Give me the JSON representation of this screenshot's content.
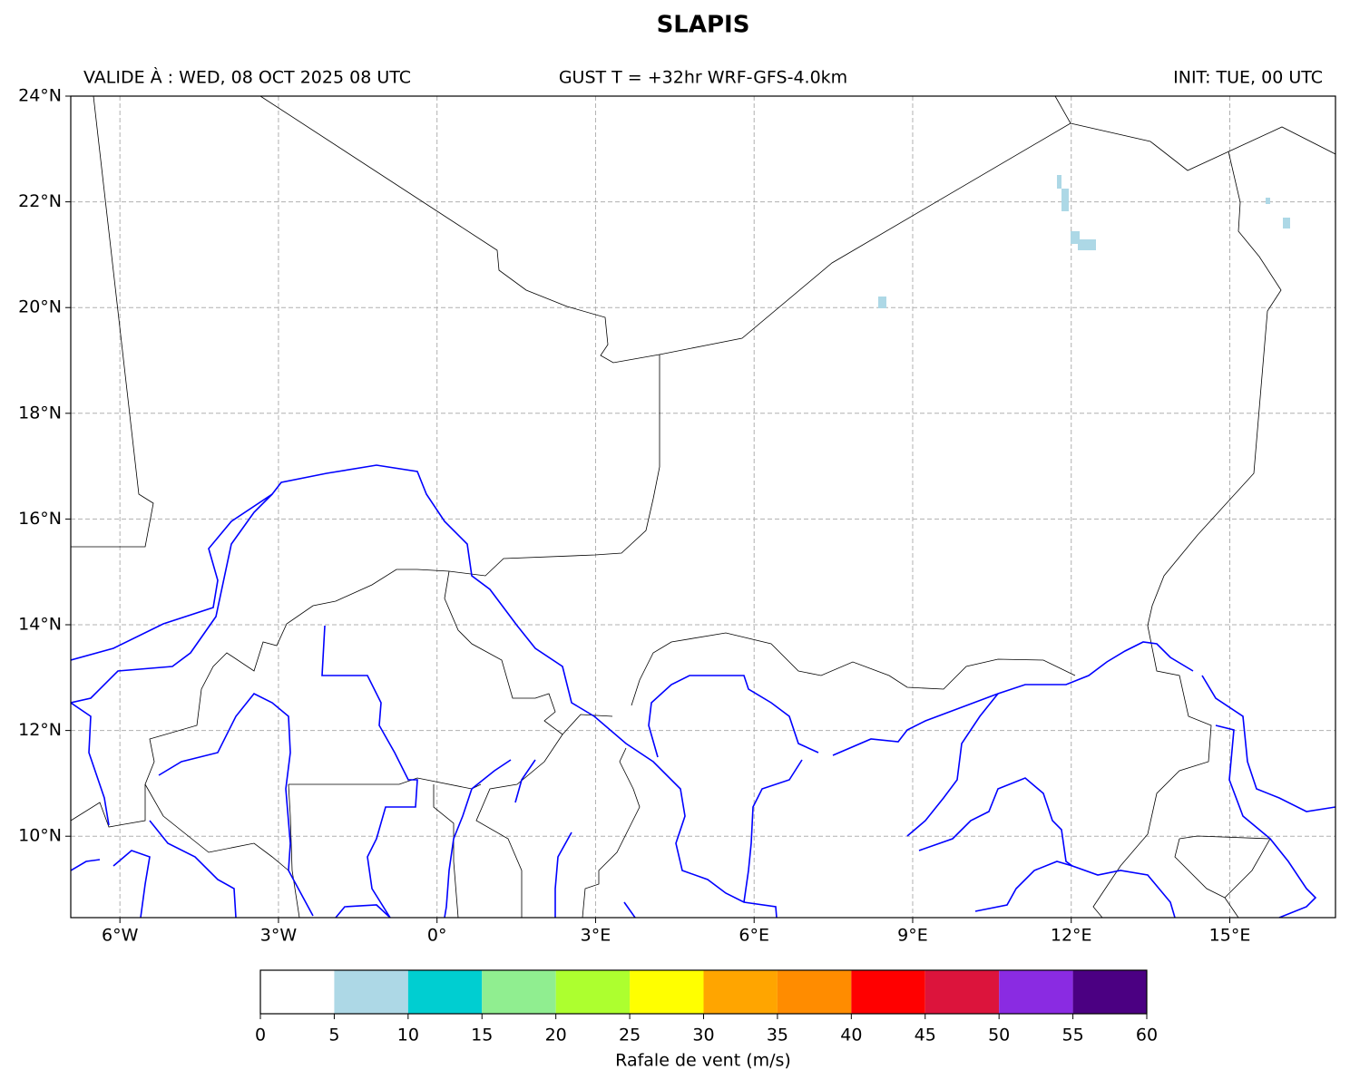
{
  "title": "SLAPIS",
  "header": {
    "valid": "VALIDE À : WED, 08 OCT 2025 08 UTC",
    "run": "GUST T = +32hr WRF-GFS-4.0km",
    "init": "INIT: TUE, 00 UTC"
  },
  "map": {
    "xlim": [
      -6.93,
      17
    ],
    "ylim": [
      8.46,
      24
    ],
    "xticks": [
      {
        "value": -6,
        "label": "6°W"
      },
      {
        "value": -3,
        "label": "3°W"
      },
      {
        "value": 0,
        "label": "0°"
      },
      {
        "value": 3,
        "label": "3°E"
      },
      {
        "value": 6,
        "label": "6°E"
      },
      {
        "value": 9,
        "label": "9°E"
      },
      {
        "value": 12,
        "label": "12°E"
      },
      {
        "value": 15,
        "label": "15°E"
      }
    ],
    "yticks": [
      {
        "value": 10,
        "label": "10°N"
      },
      {
        "value": 12,
        "label": "12°N"
      },
      {
        "value": 14,
        "label": "14°N"
      },
      {
        "value": 16,
        "label": "16°N"
      },
      {
        "value": 18,
        "label": "18°N"
      },
      {
        "value": 20,
        "label": "20°N"
      },
      {
        "value": 22,
        "label": "22°N"
      },
      {
        "value": 24,
        "label": "24°N"
      }
    ],
    "grid": true
  },
  "colorbar": {
    "label": "Rafale de vent (m/s)",
    "ticks": [
      0,
      5,
      10,
      15,
      20,
      25,
      30,
      35,
      40,
      45,
      50,
      55,
      60
    ],
    "colors": [
      "#ffffff",
      "#add8e6",
      "#00ced1",
      "#90ee90",
      "#adff2f",
      "#ffff00",
      "#ffa500",
      "#ff8c00",
      "#ff0000",
      "#dc143c",
      "#8a2be2",
      "#4b0082"
    ]
  }
}
